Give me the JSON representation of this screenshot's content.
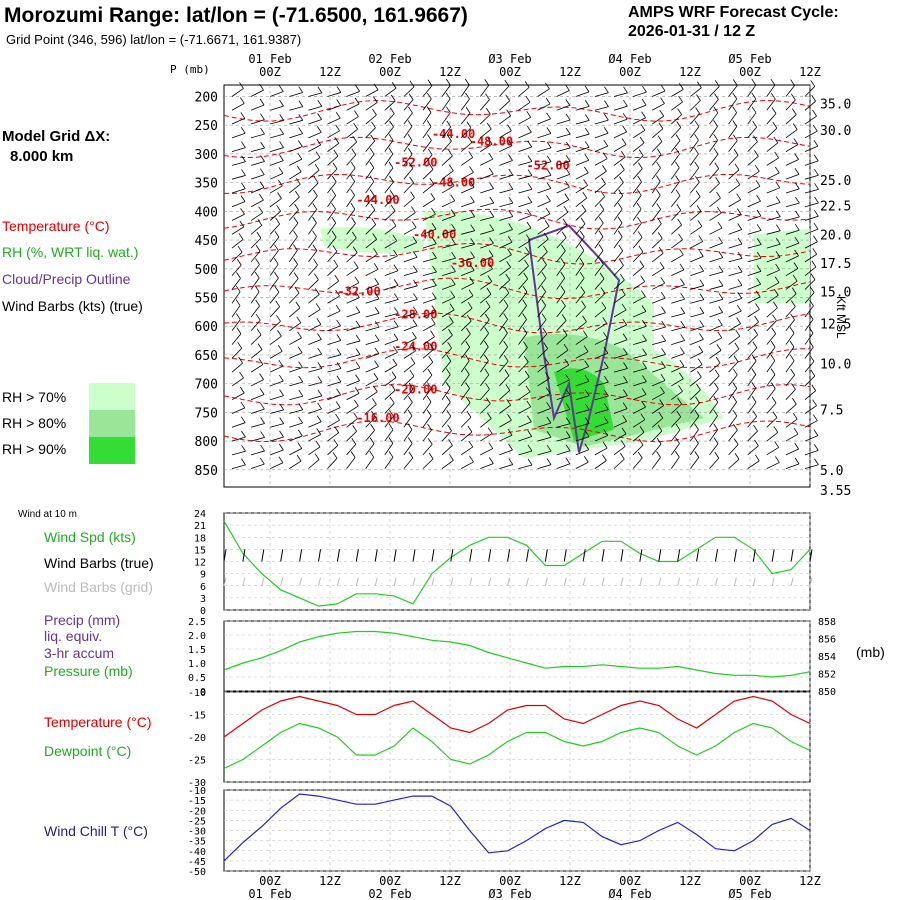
{
  "header": {
    "title": "Morozumi Range:  lat/lon = (-71.6500, 161.9667)",
    "subtitle": "Grid Point (346, 596) lat/lon = (-71.6671, 161.9387)",
    "forecast_line1": "AMPS WRF Forecast Cycle:",
    "forecast_line2": "2026-01-31 / 12  Z"
  },
  "legend": {
    "model_grid_1": "Model Grid ΔX:",
    "model_grid_2": "8.000 km",
    "temperature": "Temperature (°C)",
    "rh": "RH (%, WRT liq. wat.)",
    "cloud": "Cloud/Precip Outline",
    "wind": "Wind Barbs (kts) (true)",
    "rh70": "RH > 70%",
    "rh80": "RH > 80%",
    "rh90": "RH > 90%",
    "rh70_color": "#ccffcc",
    "rh80_color": "#99e699",
    "rh90_color": "#33dd33",
    "wind10m": "Wind at 10 m",
    "wind_spd": "Wind Spd (kts)",
    "wind_barbs_true": "Wind Barbs (true)",
    "wind_barbs_grid": "Wind Barbs (grid)",
    "precip1": "Precip (mm)",
    "precip2": "liq. equiv.",
    "precip3": "3-hr accum",
    "pressure": "Pressure (mb)",
    "temp2": "Temperature (°C)",
    "dewpoint": "Dewpoint (°C)",
    "windchill": "Wind Chill T (°C)",
    "mb_unit": "(mb)",
    "kft": "Kft MSL",
    "p_axis": "P (mb)"
  },
  "chart_data": [
    {
      "type": "contour",
      "name": "cross-section",
      "time_top_labels": [
        "00Z",
        "12Z",
        "00Z",
        "12Z",
        "00Z",
        "12Z",
        "00Z",
        "12Z",
        "00Z",
        "12Z"
      ],
      "date_labels": [
        "01 Feb",
        "02 Feb",
        "Ø3 Feb",
        "Ø4 Feb",
        "Ø5 Feb"
      ],
      "pressure_levels": [
        "200",
        "250",
        "300",
        "350",
        "400",
        "450",
        "500",
        "550",
        "600",
        "650",
        "700",
        "750",
        "800",
        "850"
      ],
      "pressure_values": [
        200,
        250,
        300,
        350,
        400,
        450,
        500,
        550,
        600,
        650,
        700,
        750,
        800,
        850
      ],
      "height_labels": [
        "35.0",
        "30.0",
        "25.0",
        "22.5",
        "20.0",
        "17.5",
        "15.0",
        "12.5",
        "10.0",
        "7.5",
        "5.0",
        "3.55"
      ],
      "height_pressures": [
        212,
        258,
        345,
        390,
        440,
        490,
        540,
        595,
        665,
        745,
        850,
        885
      ],
      "temp_labels": [
        "-44.00",
        "-48.00",
        "-52.00",
        "-52.00",
        "-48.00",
        "-44.00",
        "-40.00",
        "-36.00",
        "-32.00",
        "-28.00",
        "-24.00",
        "-20.00",
        "-16.00"
      ],
      "temp_label_pos": [
        [
          11,
          265
        ],
        [
          13,
          278
        ],
        [
          9,
          315
        ],
        [
          16,
          320
        ],
        [
          11,
          350
        ],
        [
          7,
          380
        ],
        [
          10,
          440
        ],
        [
          12,
          490
        ],
        [
          6,
          540
        ],
        [
          9,
          580
        ],
        [
          9,
          635
        ],
        [
          9,
          710
        ],
        [
          7,
          760
        ]
      ],
      "temp_levels": [
        -52,
        -48,
        -44,
        -40,
        -36,
        -32,
        -28,
        -24,
        -20,
        -16
      ]
    },
    {
      "type": "line",
      "name": "wind10m",
      "ylim": [
        0,
        24
      ],
      "yticks": [
        "0",
        "3",
        "6",
        "9",
        "12",
        "15",
        "18",
        "21",
        "24"
      ],
      "wind_spd": [
        22,
        14,
        9,
        5,
        3,
        1,
        1.5,
        4,
        4,
        3.5,
        1.5,
        9,
        13,
        16,
        18,
        18,
        16,
        11,
        11,
        14,
        17,
        17,
        14,
        12,
        12,
        15,
        18,
        18,
        15,
        9,
        10,
        15
      ]
    },
    {
      "type": "line",
      "name": "precip-pressure",
      "precip_ylim": [
        0,
        2.5
      ],
      "precip_ticks": [
        "0",
        "0.5",
        "1.0",
        "1.5",
        "2.0",
        "2.5"
      ],
      "pressure_ylim": [
        850,
        858
      ],
      "pressure_ticks": [
        "850",
        "852",
        "854",
        "856",
        "858"
      ],
      "precip": [
        0,
        0,
        0,
        0,
        0,
        0,
        0,
        0,
        0,
        0,
        0,
        0,
        0,
        0,
        0,
        0,
        0,
        0,
        0,
        0,
        0,
        0,
        0,
        0,
        0,
        0,
        0,
        0,
        0,
        0,
        0,
        0
      ],
      "pressure": [
        852.4,
        853.2,
        853.8,
        854.6,
        855.6,
        856.2,
        856.6,
        856.8,
        856.8,
        856.6,
        856.2,
        855.8,
        855.6,
        855.2,
        854.4,
        853.8,
        853.2,
        852.6,
        852.8,
        852.8,
        853.0,
        852.8,
        852.6,
        852.6,
        852.8,
        852.4,
        852.0,
        851.8,
        851.8,
        851.6,
        851.8,
        852.2
      ]
    },
    {
      "type": "line",
      "name": "temperature",
      "ylim": [
        -30,
        -10
      ],
      "yticks": [
        "-10",
        "-15",
        "-20",
        "-25",
        "-30"
      ],
      "temperature": [
        -20,
        -17,
        -14,
        -12,
        -11,
        -12,
        -13,
        -15,
        -15,
        -13,
        -12,
        -15,
        -18,
        -19,
        -17,
        -14,
        -13,
        -13,
        -16,
        -17,
        -15,
        -13,
        -12,
        -13,
        -16,
        -18,
        -15,
        -12,
        -11,
        -12,
        -15,
        -17
      ],
      "dewpoint": [
        -27,
        -25,
        -22,
        -19,
        -17,
        -18,
        -20,
        -24,
        -24,
        -22,
        -18,
        -21,
        -25,
        -26,
        -24,
        -21,
        -19,
        -19,
        -21,
        -22,
        -21,
        -19,
        -18,
        -19,
        -22,
        -24,
        -22,
        -19,
        -17,
        -18,
        -21,
        -23
      ]
    },
    {
      "type": "line",
      "name": "windchill",
      "ylim": [
        -50,
        -10
      ],
      "yticks": [
        "-10",
        "-15",
        "-20",
        "-25",
        "-30",
        "-35",
        "-40",
        "-45",
        "-50"
      ],
      "windchill": [
        -45,
        -36,
        -28,
        -19,
        -12,
        -13,
        -15,
        -17,
        -17,
        -15,
        -13,
        -13,
        -18,
        -30,
        -41,
        -40,
        -35,
        -29,
        -25,
        -26,
        -33,
        -37,
        -35,
        -30,
        -26,
        -32,
        -39,
        -40,
        -35,
        -27,
        -24,
        -30
      ],
      "time_labels": [
        "00Z",
        "12Z",
        "00Z",
        "12Z",
        "00Z",
        "12Z",
        "00Z",
        "12Z",
        "00Z",
        "12Z"
      ],
      "date_labels": [
        "01 Feb",
        "02 Feb",
        "Ø3 Feb",
        "Ø4 Feb",
        "Ø5 Feb"
      ]
    }
  ]
}
